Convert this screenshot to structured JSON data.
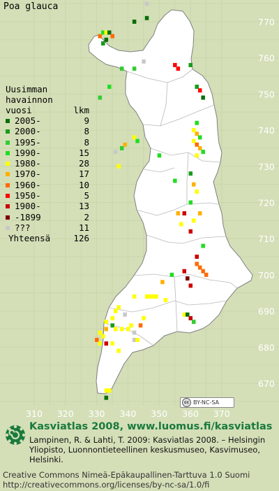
{
  "species": "Poa glauca",
  "legend": {
    "heading_1": "Uusimman",
    "heading_2": "havainnon",
    "heading_3": "vuosi",
    "heading_count": "lkm",
    "rows": [
      {
        "label": "2005-",
        "count": "9",
        "color": "#0a6e0a"
      },
      {
        "label": "2000-",
        "count": "8",
        "color": "#1a9a1a"
      },
      {
        "label": "1995-",
        "count": "8",
        "color": "#33cc33"
      },
      {
        "label": "1990-",
        "count": "15",
        "color": "#22dd22"
      },
      {
        "label": "1980-",
        "count": "28",
        "color": "#ffff00"
      },
      {
        "label": "1970-",
        "count": "17",
        "color": "#ffb000"
      },
      {
        "label": "1960-",
        "count": "10",
        "color": "#ff6a00"
      },
      {
        "label": "1950-",
        "count": "5",
        "color": "#ff0000"
      },
      {
        "label": "1900-",
        "count": "13",
        "color": "#cc0000"
      },
      {
        "label": "-1899",
        "count": "2",
        "color": "#7a0000"
      },
      {
        "label": "???",
        "count": "11",
        "color": "#c8c8c8"
      }
    ],
    "total_label": "Yhteensä",
    "total_count": "126"
  },
  "axes": {
    "y_ticks": [
      "770",
      "760",
      "750",
      "740",
      "730",
      "720",
      "710",
      "700",
      "690",
      "680",
      "670"
    ],
    "x_ticks": [
      "310",
      "320",
      "330",
      "340",
      "350",
      "360",
      "370"
    ]
  },
  "cc_badge": "BY-NC-SA",
  "footer": {
    "title": "Kasviatlas 2008, www.luomus.fi/kasviatlas",
    "citation": "Lampinen, R. & Lahti, T. 2009: Kasviatlas 2008. – Helsingin Yliopisto, Luonnontieteellinen keskusmuseo, Kasvimuseo, Helsinki.",
    "license_1": "Creative Commons Nimeä-Epäkaupallinen-Tarttuva 1.0 Suomi",
    "license_2": "http://creativecommons.org/licenses/by-nc-sa/1.0/fi"
  },
  "colors": {
    "background": "#d4dfb8",
    "land": "#ffffff",
    "grid": "#c9d6a8",
    "brand_green": "#1a7a3c"
  },
  "map_data": {
    "grid_unit": "10 km",
    "observations": [
      {
        "e": 346,
        "n": 775,
        "c": "#c8c8c8"
      },
      {
        "e": 346,
        "n": 771,
        "c": "#0a6e0a"
      },
      {
        "e": 342,
        "n": 770,
        "c": "#0a6e0a"
      },
      {
        "e": 331,
        "n": 766,
        "c": "#ff6a00"
      },
      {
        "e": 332,
        "n": 767,
        "c": "#22dd22"
      },
      {
        "e": 333,
        "n": 767,
        "c": "#ffff00"
      },
      {
        "e": 334,
        "n": 767,
        "c": "#0a6e0a"
      },
      {
        "e": 335,
        "n": 766,
        "c": "#ff6a00"
      },
      {
        "e": 333,
        "n": 765,
        "c": "#0a6e0a"
      },
      {
        "e": 332,
        "n": 764,
        "c": "#1a9a1a"
      },
      {
        "e": 345,
        "n": 759,
        "c": "#c8c8c8"
      },
      {
        "e": 355,
        "n": 758,
        "c": "#ff0000"
      },
      {
        "e": 356,
        "n": 757,
        "c": "#ff0000"
      },
      {
        "e": 360,
        "n": 758,
        "c": "#1a9a1a"
      },
      {
        "e": 338,
        "n": 757,
        "c": "#33cc33"
      },
      {
        "e": 342,
        "n": 757,
        "c": "#33cc33"
      },
      {
        "e": 334,
        "n": 752,
        "c": "#22dd22"
      },
      {
        "e": 331,
        "n": 749,
        "c": "#33cc33"
      },
      {
        "e": 362,
        "n": 752,
        "c": "#1a9a1a"
      },
      {
        "e": 363,
        "n": 751,
        "c": "#ff0000"
      },
      {
        "e": 364,
        "n": 749,
        "c": "#0a6e0a"
      },
      {
        "e": 362,
        "n": 742,
        "c": "#22dd22"
      },
      {
        "e": 361,
        "n": 740,
        "c": "#ffff00"
      },
      {
        "e": 362,
        "n": 739,
        "c": "#ffb000"
      },
      {
        "e": 363,
        "n": 738,
        "c": "#22dd22"
      },
      {
        "e": 361,
        "n": 737,
        "c": "#ffff00"
      },
      {
        "e": 362,
        "n": 736,
        "c": "#ff6a00"
      },
      {
        "e": 363,
        "n": 735,
        "c": "#ffb000"
      },
      {
        "e": 364,
        "n": 734,
        "c": "#22dd22"
      },
      {
        "e": 362,
        "n": 733,
        "c": "#ffff00"
      },
      {
        "e": 342,
        "n": 738,
        "c": "#ffff00"
      },
      {
        "e": 343,
        "n": 737,
        "c": "#22dd22"
      },
      {
        "e": 339,
        "n": 736,
        "c": "#ffb000"
      },
      {
        "e": 338,
        "n": 735,
        "c": "#33cc33"
      },
      {
        "e": 336,
        "n": 734,
        "c": "#c8c8c8"
      },
      {
        "e": 337,
        "n": 730,
        "c": "#ffff00"
      },
      {
        "e": 350,
        "n": 733,
        "c": "#22dd22"
      },
      {
        "e": 355,
        "n": 726,
        "c": "#22dd22"
      },
      {
        "e": 360,
        "n": 728,
        "c": "#1a9a1a"
      },
      {
        "e": 361,
        "n": 725,
        "c": "#ffb000"
      },
      {
        "e": 362,
        "n": 723,
        "c": "#ffff00"
      },
      {
        "e": 360,
        "n": 720,
        "c": "#22dd22"
      },
      {
        "e": 358,
        "n": 717,
        "c": "#cc0000"
      },
      {
        "e": 356,
        "n": 717,
        "c": "#ffb000"
      },
      {
        "e": 363,
        "n": 717,
        "c": "#ffb000"
      },
      {
        "e": 361,
        "n": 715,
        "c": "#ffff00"
      },
      {
        "e": 357,
        "n": 714,
        "c": "#ffff00"
      },
      {
        "e": 360,
        "n": 712,
        "c": "#cc0000"
      },
      {
        "e": 364,
        "n": 708,
        "c": "#22dd22"
      },
      {
        "e": 362,
        "n": 705,
        "c": "#cc0000"
      },
      {
        "e": 362,
        "n": 703,
        "c": "#ff6a00"
      },
      {
        "e": 363,
        "n": 702,
        "c": "#ff6a00"
      },
      {
        "e": 364,
        "n": 701,
        "c": "#ff6a00"
      },
      {
        "e": 365,
        "n": 700,
        "c": "#ff6a00"
      },
      {
        "e": 358,
        "n": 701,
        "c": "#cc0000"
      },
      {
        "e": 359,
        "n": 699,
        "c": "#7a0000"
      },
      {
        "e": 360,
        "n": 697,
        "c": "#cc0000"
      },
      {
        "e": 354,
        "n": 700,
        "c": "#22dd22"
      },
      {
        "e": 351,
        "n": 698,
        "c": "#ffb000"
      },
      {
        "e": 349,
        "n": 694,
        "c": "#ffff00"
      },
      {
        "e": 346,
        "n": 694,
        "c": "#ffff00"
      },
      {
        "e": 347,
        "n": 694,
        "c": "#ffff00"
      },
      {
        "e": 348,
        "n": 694,
        "c": "#ffff00"
      },
      {
        "e": 352,
        "n": 693,
        "c": "#ffff00"
      },
      {
        "e": 342,
        "n": 694,
        "c": "#ffff00"
      },
      {
        "e": 358,
        "n": 689,
        "c": "#ffff00"
      },
      {
        "e": 359,
        "n": 689,
        "c": "#0a6e0a"
      },
      {
        "e": 360,
        "n": 688,
        "c": "#cc0000"
      },
      {
        "e": 361,
        "n": 687,
        "c": "#33cc33"
      },
      {
        "e": 345,
        "n": 688,
        "c": "#ffff00"
      },
      {
        "e": 339,
        "n": 689,
        "c": "#c8c8c8"
      },
      {
        "e": 336,
        "n": 690,
        "c": "#ffff00"
      },
      {
        "e": 337,
        "n": 691,
        "c": "#ffff00"
      },
      {
        "e": 335,
        "n": 688,
        "c": "#ffff00"
      },
      {
        "e": 335,
        "n": 686,
        "c": "#1a9a1a"
      },
      {
        "e": 333,
        "n": 687,
        "c": "#ffff00"
      },
      {
        "e": 333,
        "n": 685,
        "c": "#ffb000"
      },
      {
        "e": 336,
        "n": 685,
        "c": "#ffff00"
      },
      {
        "e": 338,
        "n": 685,
        "c": "#ffff00"
      },
      {
        "e": 340,
        "n": 685,
        "c": "#ffff00"
      },
      {
        "e": 342,
        "n": 684,
        "c": "#c8c8c8"
      },
      {
        "e": 341,
        "n": 686,
        "c": "#ffff00"
      },
      {
        "e": 344,
        "n": 686,
        "c": "#ff6a00"
      },
      {
        "e": 331,
        "n": 684,
        "c": "#ffff00"
      },
      {
        "e": 332,
        "n": 683,
        "c": "#ffff00"
      },
      {
        "e": 330,
        "n": 682,
        "c": "#ff6a00"
      },
      {
        "e": 331,
        "n": 681,
        "c": "#ffff00"
      },
      {
        "e": 333,
        "n": 681,
        "c": "#cc0000"
      },
      {
        "e": 335,
        "n": 681,
        "c": "#ffff00"
      },
      {
        "e": 342,
        "n": 682,
        "c": "#c8c8c8"
      },
      {
        "e": 343,
        "n": 682,
        "c": "#ffff00"
      },
      {
        "e": 337,
        "n": 679,
        "c": "#ffff00"
      },
      {
        "e": 333,
        "n": 668,
        "c": "#ffff00"
      },
      {
        "e": 334,
        "n": 668,
        "c": "#ffff00"
      },
      {
        "e": 333,
        "n": 666,
        "c": "#0a6e0a"
      }
    ]
  }
}
